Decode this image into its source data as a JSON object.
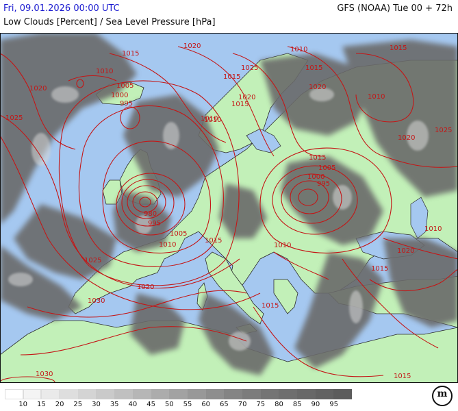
{
  "header": {
    "valid_time": "Fri, 09.01.2026 00:00 UTC",
    "parameter": "Low Clouds [Percent] / Sea Level Pressure [hPa]",
    "model_run": "GFS (NOAA) Tue 00 + 72h"
  },
  "colors": {
    "sea": "#a5c8f0",
    "land": "#c2f0b8",
    "cloud_dark": "#6a6a6a",
    "isobar": "#c41616",
    "title": "#1a1ad0"
  },
  "legend": {
    "labels": [
      "10",
      "15",
      "20",
      "25",
      "30",
      "35",
      "40",
      "45",
      "50",
      "55",
      "60",
      "65",
      "70",
      "75",
      "80",
      "85",
      "90",
      "95"
    ],
    "colors": [
      "#ffffff",
      "#f4f4f4",
      "#eaeaea",
      "#dedede",
      "#d4d4d4",
      "#cacaca",
      "#c0c0c0",
      "#b6b6b6",
      "#acacac",
      "#a2a2a2",
      "#989898",
      "#8e8e8e",
      "#848484",
      "#7c7c7c",
      "#747474",
      "#6e6e6e",
      "#686868",
      "#626262",
      "#5c5c5c"
    ]
  },
  "isobar_labels": [
    {
      "id": "l1",
      "text": "1015"
    },
    {
      "id": "l2",
      "text": "1020"
    },
    {
      "id": "l3",
      "text": "1010"
    },
    {
      "id": "l4",
      "text": "1020"
    },
    {
      "id": "l5",
      "text": "1005"
    },
    {
      "id": "l6",
      "text": "1000"
    },
    {
      "id": "l7",
      "text": "995"
    },
    {
      "id": "l8",
      "text": "1025"
    },
    {
      "id": "l9",
      "text": "1010"
    },
    {
      "id": "l10",
      "text": "1025"
    },
    {
      "id": "l11",
      "text": "1015"
    },
    {
      "id": "l12",
      "text": "1020"
    },
    {
      "id": "l13",
      "text": "1015"
    },
    {
      "id": "l14",
      "text": "1010"
    },
    {
      "id": "l15",
      "text": "1015"
    },
    {
      "id": "l16",
      "text": "1020"
    },
    {
      "id": "l17",
      "text": "1015"
    },
    {
      "id": "l18",
      "text": "1010"
    },
    {
      "id": "l19",
      "text": "1025"
    },
    {
      "id": "l20",
      "text": "1020"
    },
    {
      "id": "l21",
      "text": "1015"
    },
    {
      "id": "l22",
      "text": "1005"
    },
    {
      "id": "l23",
      "text": "1000"
    },
    {
      "id": "l24",
      "text": "995"
    },
    {
      "id": "l25",
      "text": "980"
    },
    {
      "id": "l26",
      "text": "995"
    },
    {
      "id": "l27",
      "text": "1005"
    },
    {
      "id": "l28",
      "text": "1010"
    },
    {
      "id": "l29",
      "text": "1015"
    },
    {
      "id": "l30",
      "text": "1010"
    },
    {
      "id": "l31",
      "text": "1025"
    },
    {
      "id": "l32",
      "text": "1020"
    },
    {
      "id": "l33",
      "text": "1030"
    },
    {
      "id": "l34",
      "text": "1010"
    },
    {
      "id": "l35",
      "text": "1020"
    },
    {
      "id": "l36",
      "text": "1015"
    },
    {
      "id": "l37",
      "text": "1015"
    },
    {
      "id": "l38",
      "text": "1030"
    },
    {
      "id": "l39",
      "text": "1015"
    },
    {
      "id": "l40",
      "text": "1010"
    }
  ],
  "logo": {
    "text": "m"
  }
}
